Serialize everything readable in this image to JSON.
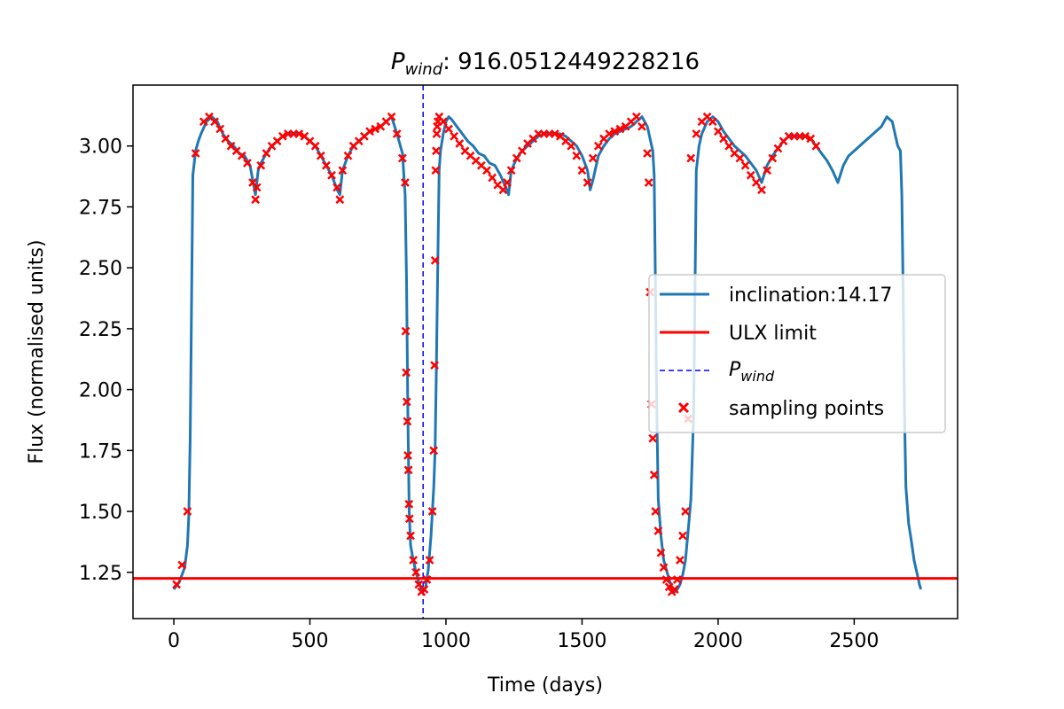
{
  "chart_data": {
    "type": "line",
    "title_main": "P",
    "title_sub": "wind",
    "title_value": ": 916.0512449228216",
    "xlabel": "Time (days)",
    "ylabel": "Flux (normalised units)",
    "xlim": [
      -150,
      2880
    ],
    "ylim": [
      1.06,
      3.25
    ],
    "xticks": [
      0,
      500,
      1000,
      1500,
      2000,
      2500
    ],
    "xtick_labels": [
      "0",
      "500",
      "1000",
      "1500",
      "2000",
      "2500"
    ],
    "yticks": [
      1.25,
      1.5,
      1.75,
      2.0,
      2.25,
      2.5,
      2.75,
      3.0
    ],
    "ytick_labels": [
      "1.25",
      "1.50",
      "1.75",
      "2.00",
      "2.25",
      "2.50",
      "2.75",
      "3.00"
    ],
    "grid": false,
    "legend_position": "center-right",
    "series": [
      {
        "name": "inclination:14.17",
        "style": "line",
        "color": "#1f77b4",
        "x": [
          0,
          20,
          40,
          50,
          55,
          60,
          70,
          80,
          90,
          100,
          120,
          140,
          160,
          180,
          200,
          220,
          240,
          260,
          280,
          300,
          310,
          320,
          340,
          360,
          380,
          400,
          420,
          440,
          460,
          480,
          500,
          520,
          540,
          560,
          580,
          600,
          610,
          620,
          640,
          660,
          680,
          700,
          720,
          740,
          760,
          780,
          800,
          820,
          840,
          850,
          855,
          860,
          865,
          870,
          880,
          890,
          900,
          910,
          916,
          925,
          935,
          945,
          955,
          960,
          965,
          970,
          975,
          980,
          990,
          1000,
          1010,
          1020,
          1040,
          1060,
          1080,
          1100,
          1120,
          1140,
          1160,
          1180,
          1200,
          1220,
          1230,
          1240,
          1260,
          1280,
          1300,
          1320,
          1340,
          1360,
          1380,
          1400,
          1420,
          1440,
          1460,
          1480,
          1500,
          1520,
          1530,
          1540,
          1560,
          1580,
          1600,
          1620,
          1640,
          1660,
          1680,
          1700,
          1720,
          1740,
          1760,
          1765,
          1770,
          1775,
          1780,
          1790,
          1800,
          1810,
          1820,
          1830,
          1840,
          1850,
          1860,
          1870,
          1880,
          1890,
          1900,
          1910,
          1920,
          1930,
          1940,
          1960,
          1980,
          2000,
          2020,
          2040,
          2060,
          2080,
          2100,
          2120,
          2140,
          2160,
          2180,
          2200,
          2220,
          2240,
          2260,
          2280,
          2300,
          2320,
          2340,
          2360,
          2380,
          2400,
          2420,
          2440,
          2460,
          2480,
          2500,
          2520,
          2540,
          2560,
          2580,
          2600,
          2620,
          2640,
          2660,
          2670,
          2675,
          2680,
          2685,
          2690,
          2700,
          2710,
          2720,
          2730,
          2740,
          2745
        ],
        "y": [
          1.18,
          1.21,
          1.27,
          1.36,
          1.48,
          1.8,
          2.88,
          2.98,
          3.02,
          3.05,
          3.1,
          3.12,
          3.1,
          3.05,
          3.02,
          3.0,
          2.97,
          2.96,
          2.92,
          2.8,
          2.9,
          2.93,
          2.97,
          3.0,
          3.02,
          3.04,
          3.05,
          3.05,
          3.05,
          3.04,
          3.02,
          3.0,
          2.96,
          2.92,
          2.88,
          2.82,
          2.8,
          2.9,
          2.96,
          3.0,
          3.02,
          3.04,
          3.06,
          3.07,
          3.08,
          3.1,
          3.12,
          3.05,
          2.97,
          2.8,
          2.45,
          1.9,
          1.5,
          1.36,
          1.3,
          1.25,
          1.21,
          1.18,
          1.17,
          1.19,
          1.26,
          1.4,
          1.6,
          1.75,
          2.1,
          2.53,
          2.9,
          2.98,
          3.05,
          3.1,
          3.12,
          3.11,
          3.08,
          3.05,
          3.02,
          3.0,
          2.97,
          2.96,
          2.93,
          2.92,
          2.88,
          2.83,
          2.8,
          2.9,
          2.95,
          2.98,
          3.0,
          3.02,
          3.04,
          3.05,
          3.05,
          3.05,
          3.05,
          3.04,
          3.02,
          3.0,
          2.96,
          2.9,
          2.82,
          2.86,
          2.96,
          3.0,
          3.03,
          3.05,
          3.06,
          3.07,
          3.08,
          3.1,
          3.12,
          3.08,
          2.98,
          2.88,
          2.4,
          1.9,
          1.55,
          1.4,
          1.3,
          1.26,
          1.22,
          1.19,
          1.17,
          1.18,
          1.2,
          1.24,
          1.3,
          1.42,
          1.55,
          1.9,
          2.9,
          3.0,
          3.05,
          3.1,
          3.12,
          3.1,
          3.06,
          3.03,
          3.0,
          2.98,
          2.96,
          2.93,
          2.9,
          2.85,
          2.92,
          2.96,
          2.99,
          3.02,
          3.04,
          3.04,
          3.04,
          3.04,
          3.03,
          3.0,
          2.97,
          2.94,
          2.9,
          2.85,
          2.92,
          2.96,
          2.98,
          3.0,
          3.02,
          3.04,
          3.06,
          3.08,
          3.12,
          3.1,
          3.0,
          2.98,
          2.8,
          2.4,
          1.9,
          1.6,
          1.45,
          1.38,
          1.3,
          1.25,
          1.2,
          1.18
        ]
      },
      {
        "name": "ULX limit",
        "style": "hline",
        "color": "#ff0000",
        "y": 1.225
      },
      {
        "name": "P",
        "name_sub": "wind",
        "style": "vline-dashed",
        "color": "#0000ff",
        "x": 916.0512449228216
      },
      {
        "name": "sampling points",
        "style": "scatter-x",
        "color": "#ff0000",
        "x": [
          10,
          30,
          50,
          80,
          110,
          130,
          150,
          170,
          190,
          210,
          230,
          250,
          270,
          290,
          300,
          305,
          320,
          340,
          360,
          380,
          400,
          420,
          440,
          460,
          480,
          500,
          520,
          540,
          560,
          580,
          600,
          610,
          620,
          640,
          660,
          680,
          700,
          720,
          740,
          760,
          780,
          800,
          820,
          840,
          850,
          852,
          854,
          856,
          858,
          860,
          862,
          864,
          866,
          870,
          880,
          890,
          900,
          910,
          920,
          930,
          940,
          950,
          955,
          958,
          960,
          962,
          964,
          966,
          968,
          970,
          975,
          990,
          1010,
          1030,
          1050,
          1070,
          1090,
          1110,
          1130,
          1150,
          1170,
          1190,
          1210,
          1225,
          1240,
          1260,
          1280,
          1300,
          1320,
          1340,
          1360,
          1380,
          1400,
          1420,
          1440,
          1460,
          1480,
          1500,
          1520,
          1540,
          1560,
          1580,
          1600,
          1620,
          1640,
          1660,
          1680,
          1700,
          1720,
          1740,
          1745,
          1750,
          1755,
          1760,
          1765,
          1770,
          1780,
          1790,
          1800,
          1810,
          1820,
          1830,
          1840,
          1850,
          1860,
          1870,
          1880,
          1890,
          1900,
          1920,
          1940,
          1960,
          1980,
          2000,
          2020,
          2040,
          2060,
          2080,
          2100,
          2120,
          2140,
          2160,
          2180,
          2200,
          2220,
          2240,
          2260,
          2280,
          2300,
          2320,
          2340,
          2360
        ],
        "y": [
          1.2,
          1.28,
          1.5,
          2.97,
          3.1,
          3.12,
          3.1,
          3.07,
          3.03,
          3.0,
          2.98,
          2.96,
          2.93,
          2.85,
          2.78,
          2.83,
          2.92,
          2.97,
          3.0,
          3.02,
          3.04,
          3.05,
          3.05,
          3.05,
          3.04,
          3.02,
          3.0,
          2.96,
          2.92,
          2.88,
          2.83,
          2.78,
          2.9,
          2.96,
          3.0,
          3.02,
          3.04,
          3.06,
          3.07,
          3.08,
          3.1,
          3.12,
          3.05,
          2.95,
          2.85,
          2.24,
          2.07,
          1.95,
          1.87,
          1.73,
          1.67,
          1.53,
          1.47,
          1.4,
          1.3,
          1.25,
          1.2,
          1.17,
          1.18,
          1.22,
          1.3,
          1.5,
          1.75,
          2.1,
          2.53,
          2.9,
          2.98,
          3.05,
          3.08,
          3.1,
          3.12,
          3.1,
          3.07,
          3.04,
          3.01,
          2.98,
          2.96,
          2.94,
          2.92,
          2.9,
          2.87,
          2.84,
          2.82,
          2.85,
          2.9,
          2.95,
          2.98,
          3.01,
          3.03,
          3.05,
          3.05,
          3.05,
          3.05,
          3.04,
          3.02,
          3.0,
          2.96,
          2.9,
          2.85,
          2.95,
          3.0,
          3.03,
          3.05,
          3.06,
          3.07,
          3.08,
          3.1,
          3.12,
          3.08,
          2.97,
          2.85,
          2.4,
          1.94,
          1.8,
          1.65,
          1.5,
          1.42,
          1.33,
          1.27,
          1.22,
          1.19,
          1.17,
          1.18,
          1.22,
          1.3,
          1.4,
          1.5,
          1.88,
          2.95,
          3.05,
          3.1,
          3.12,
          3.1,
          3.06,
          3.03,
          3.0,
          2.97,
          2.95,
          2.92,
          2.88,
          2.85,
          2.82,
          2.9,
          2.95,
          2.99,
          3.02,
          3.04,
          3.04,
          3.04,
          3.04,
          3.03,
          3.0
        ]
      }
    ]
  }
}
